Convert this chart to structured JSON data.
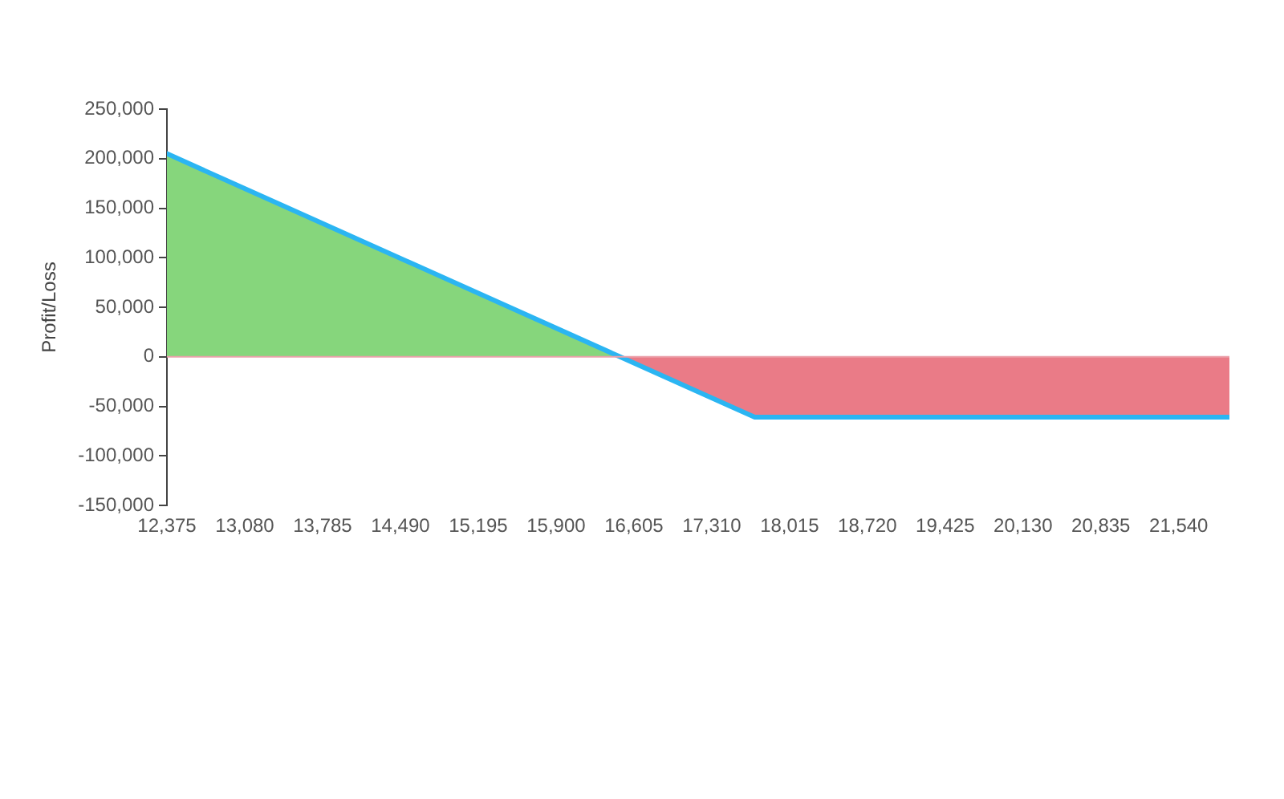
{
  "chart_data": {
    "type": "area",
    "ylabel": "Profit/Loss",
    "series": [
      {
        "type": "line",
        "color": "#2bb5f2",
        "x": [
          12375,
          16480,
          17700,
          22000
        ],
        "values": [
          205000,
          0,
          -61000,
          -61000
        ]
      },
      {
        "color": "#86d67c",
        "x": [
          12375,
          16480
        ],
        "values": [
          205000,
          0
        ]
      },
      {
        "color": "#ea7b87",
        "x": [
          16480,
          17700,
          22000
        ],
        "values": [
          0,
          -61000,
          -61000
        ]
      }
    ],
    "xlim": [
      12375,
      22000
    ],
    "xticks": [
      {
        "value": 12375,
        "label": "12,375"
      },
      {
        "value": 13080,
        "label": "13,080"
      },
      {
        "value": 13785,
        "label": "13,785"
      },
      {
        "value": 14490,
        "label": "14,490"
      },
      {
        "value": 15195,
        "label": "15,195"
      },
      {
        "value": 15900,
        "label": "15,900"
      },
      {
        "value": 16605,
        "label": "16,605"
      },
      {
        "value": 17310,
        "label": "17,310"
      },
      {
        "value": 18015,
        "label": "18,015"
      },
      {
        "value": 18720,
        "label": "18,720"
      },
      {
        "value": 19425,
        "label": "19,425"
      },
      {
        "value": 20130,
        "label": "20,130"
      },
      {
        "value": 20835,
        "label": "20,835"
      },
      {
        "value": 21540,
        "label": "21,540"
      }
    ],
    "ylim": [
      -150000,
      250000
    ],
    "yticks": [
      {
        "value": -150000,
        "label": "-150,000"
      },
      {
        "value": -100000,
        "label": "-100,000"
      },
      {
        "value": -50000,
        "label": "-50,000"
      },
      0,
      {
        "value": 50000,
        "label": "50,000"
      },
      {
        "value": 100000,
        "label": "100,000"
      },
      {
        "value": 150000,
        "label": "150,000"
      },
      {
        "value": 200000,
        "label": "200,000"
      },
      {
        "value": 250000,
        "label": "250,000"
      }
    ],
    "ref_lines": [
      {
        "axis": "y",
        "value": 0,
        "color": "#eba1aa"
      }
    ],
    "grid": false,
    "marker": "none"
  }
}
